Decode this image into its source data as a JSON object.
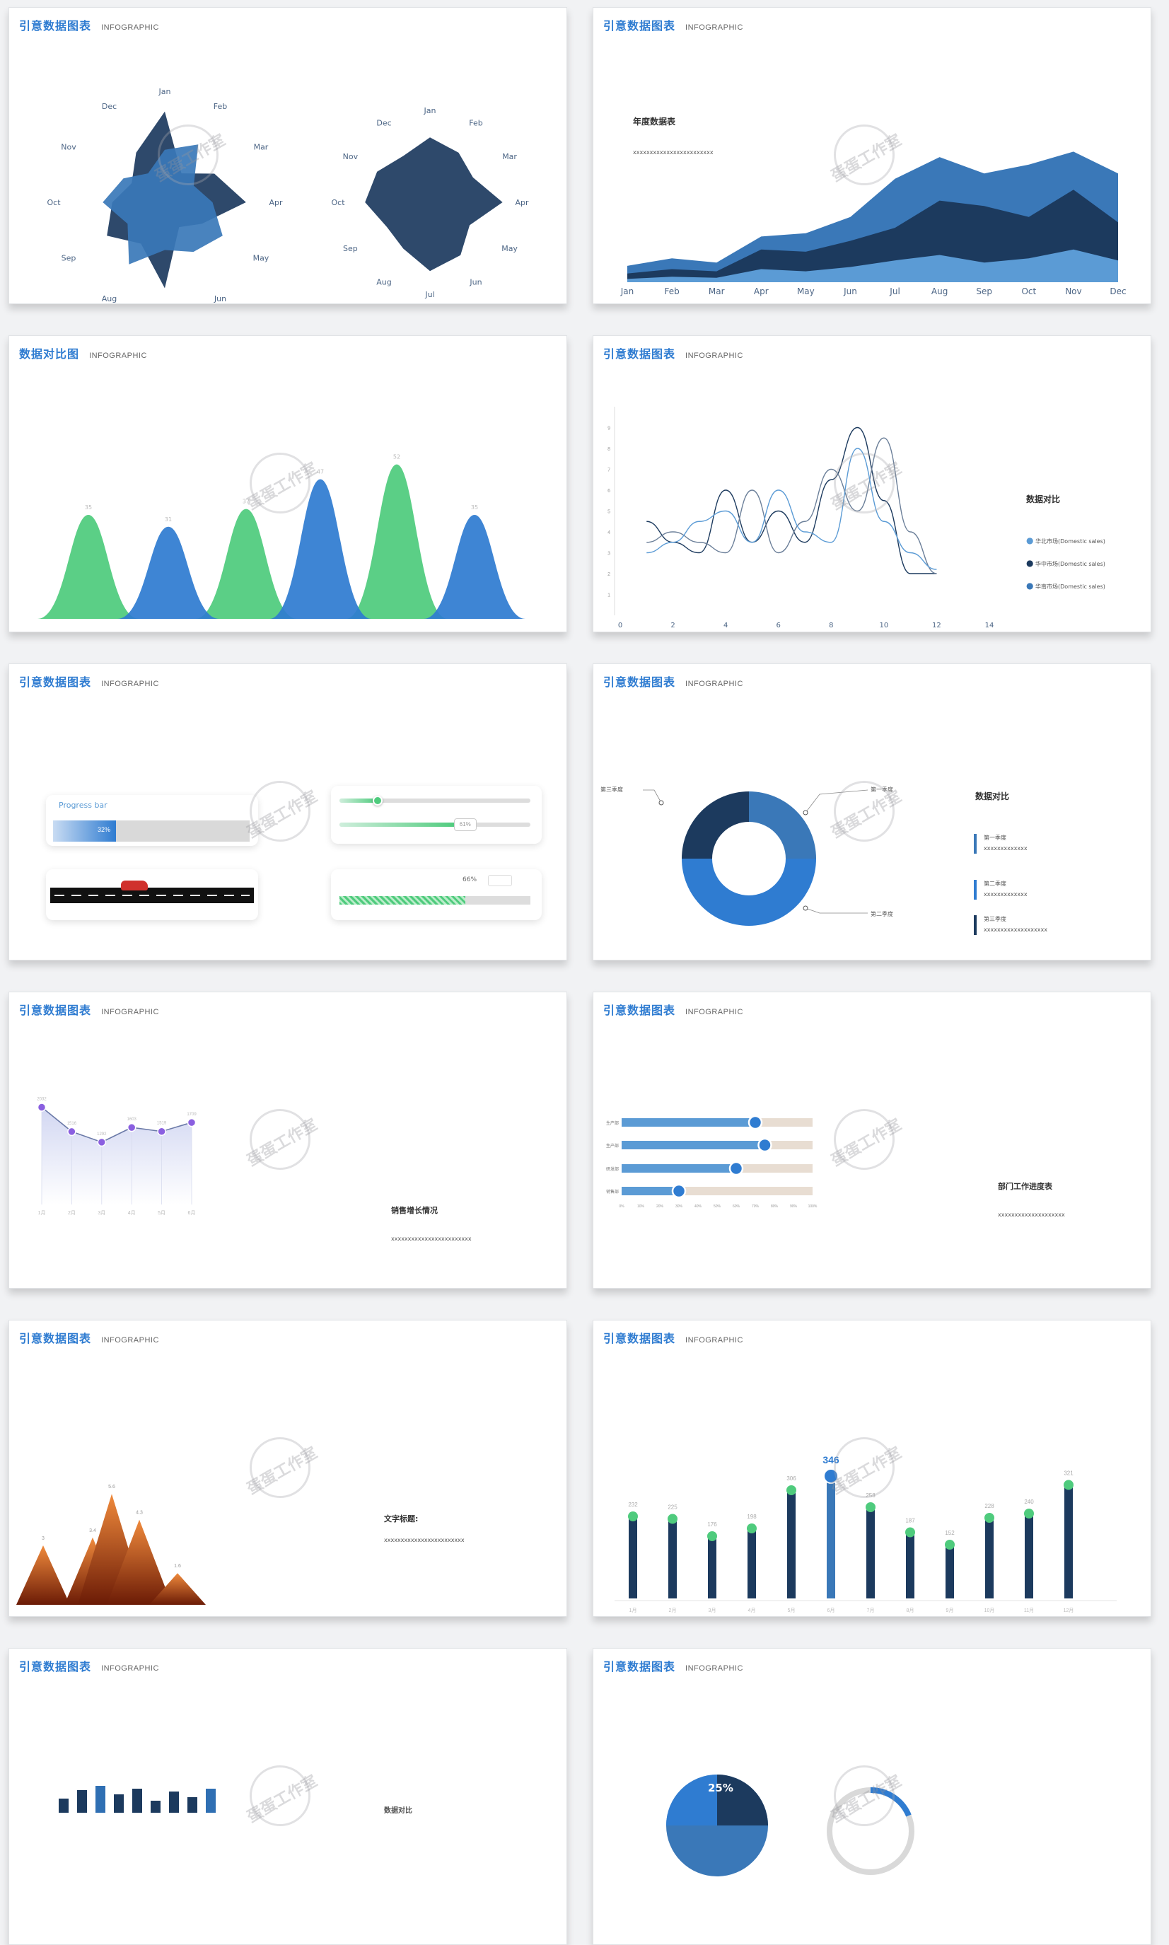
{
  "brand": {
    "title": "引意数据图表",
    "subtitle": "INFOGRAPHIC",
    "watermark": "蛋蛋工作室"
  },
  "colors": {
    "navy": "#1c3a5e",
    "blue": "#2f7cd1",
    "mid": "#3a78b8",
    "light": "#5b9bd5",
    "green": "#4fcb7d",
    "orange": "#e36b21",
    "beige": "#e8ddd2"
  },
  "slides": {
    "s1": {
      "header": "引意数据图表"
    },
    "s2": {
      "header": "引意数据图表",
      "panel_title": "年度数据表",
      "panel_text": "xxxxxxxxxxxxxxxxxxxxxxxx"
    },
    "s3": {
      "header": "数据对比图"
    },
    "s4": {
      "header": "引意数据图表",
      "legend_title": "数据对比",
      "legend": [
        "华北市场(Domestic sales)",
        "华中市场(Domestic sales)",
        "华南市场(Domestic sales)"
      ]
    },
    "s5": {
      "header": "引意数据图表",
      "progress_label": "Progress bar",
      "progress_value": "32%",
      "slider2_value": "61%",
      "striped_value": "66%"
    },
    "s6": {
      "header": "引意数据图表",
      "legend_title": "数据对比",
      "callout_left": "第三季度",
      "callout_top": "第一季度",
      "callout_bottom": "第二季度",
      "items": [
        {
          "label": "第一季度",
          "text": "xxxxxxxxxxxxx"
        },
        {
          "label": "第二季度",
          "text": "xxxxxxxxxxxxx"
        },
        {
          "label": "第三季度",
          "text": "xxxxxxxxxxxxxxxxxxx"
        }
      ]
    },
    "s7": {
      "header": "引意数据图表",
      "panel_title": "销售增长情况",
      "panel_text": "xxxxxxxxxxxxxxxxxxxxxxxx"
    },
    "s8": {
      "header": "引意数据图表",
      "panel_title": "部门工作进度表",
      "panel_text": "xxxxxxxxxxxxxxxxxxxx"
    },
    "s9": {
      "header": "引意数据图表",
      "panel_title": "文字标题:",
      "panel_text": "xxxxxxxxxxxxxxxxxxxxxxxx"
    },
    "s10": {
      "header": "引意数据图表"
    },
    "s11": {
      "header": "引意数据图表",
      "partial_label": "数据对比"
    },
    "s12": {
      "header": "引意数据图表",
      "pie_label": "25%"
    }
  },
  "chart_data": [
    {
      "type": "radar",
      "categories": [
        "Jan",
        "Feb",
        "Mar",
        "Apr",
        "May",
        "Jun",
        "Jul",
        "Aug",
        "Sep",
        "Oct",
        "Nov",
        "Dec"
      ],
      "series": [
        {
          "values": [
            0.95,
            0.35,
            0.6,
            0.85,
            0.45,
            0.3,
            0.9,
            0.5,
            0.7,
            0.55,
            0.4,
            0.6
          ]
        },
        {
          "values": [
            0.55,
            0.7,
            0.35,
            0.5,
            0.7,
            0.6,
            0.5,
            0.75,
            0.45,
            0.65,
            0.5,
            0.35
          ]
        }
      ]
    },
    {
      "type": "radar",
      "categories": [
        "Jan",
        "Feb",
        "Mar",
        "Apr",
        "May",
        "Jun",
        "Jul",
        "Aug",
        "Sep",
        "Oct",
        "Nov",
        "Dec"
      ],
      "series": [
        {
          "values": [
            0.85,
            0.75,
            0.65,
            0.95,
            0.6,
            0.8,
            0.9,
            0.7,
            0.65,
            0.85,
            0.8,
            0.7
          ]
        }
      ]
    },
    {
      "type": "area",
      "categories": [
        "Jan",
        "Feb",
        "Mar",
        "Apr",
        "May",
        "Jun",
        "Jul",
        "Aug",
        "Sep",
        "Oct",
        "Nov",
        "Dec"
      ],
      "series": [
        {
          "values": [
            15,
            22,
            18,
            42,
            45,
            60,
            95,
            115,
            100,
            108,
            120,
            100
          ]
        },
        {
          "values": [
            8,
            12,
            10,
            30,
            28,
            38,
            50,
            75,
            70,
            60,
            85,
            55
          ]
        },
        {
          "values": [
            3,
            5,
            4,
            12,
            10,
            14,
            20,
            25,
            18,
            22,
            30,
            20
          ]
        }
      ]
    },
    {
      "type": "area",
      "series": [
        {
          "values": [
            35,
            37,
            52,
            42,
            48,
            39
          ]
        },
        {
          "values": [
            31,
            47,
            35
          ]
        }
      ]
    },
    {
      "type": "line",
      "xlim": [
        0,
        14
      ],
      "x_ticks": [
        0,
        2,
        4,
        6,
        8,
        10,
        12,
        14
      ],
      "y_ticks": [
        1,
        2,
        3,
        4,
        5,
        6,
        7,
        8,
        9
      ],
      "series": [
        {
          "x": [
            1,
            2,
            3,
            4,
            5,
            6,
            7,
            8,
            9,
            10,
            11,
            12
          ],
          "y": [
            4.5,
            3.5,
            3,
            6,
            3.5,
            5,
            3.5,
            6.5,
            9,
            5.5,
            2,
            2
          ]
        },
        {
          "x": [
            1,
            2,
            3,
            4,
            5,
            6,
            7,
            8,
            9,
            10,
            11,
            12
          ],
          "y": [
            3.5,
            4,
            3.5,
            3,
            6,
            3,
            4.5,
            7,
            5,
            8.5,
            4,
            2
          ]
        },
        {
          "x": [
            1,
            2,
            3,
            4,
            5,
            6,
            7,
            8,
            9,
            10,
            11,
            12
          ],
          "y": [
            3,
            3.5,
            4.5,
            5,
            3.5,
            6,
            4,
            3.5,
            8,
            4.5,
            3,
            2.2
          ]
        }
      ]
    },
    {
      "type": "donut",
      "series": [
        {
          "name": "第一季度",
          "value": 25
        },
        {
          "name": "第二季度",
          "value": 50
        },
        {
          "name": "第三季度",
          "value": 25
        }
      ]
    },
    {
      "type": "line",
      "categories": [
        "1月",
        "2月",
        "3月",
        "4月",
        "5月",
        "6月"
      ],
      "values": [
        2032,
        1516,
        1292,
        1603,
        1519,
        1709
      ]
    },
    {
      "type": "bar",
      "orientation": "horizontal",
      "categories": [
        "生产部",
        "生产部",
        "研发部",
        "销售部"
      ],
      "values": [
        70,
        75,
        60,
        30
      ],
      "xlim": [
        0,
        100
      ],
      "x_ticks": [
        "0%",
        "10%",
        "20%",
        "30%",
        "40%",
        "50%",
        "60%",
        "70%",
        "80%",
        "90%",
        "100%"
      ]
    },
    {
      "type": "area",
      "values": [
        3,
        3.4,
        5.6,
        4.3,
        1.6
      ],
      "value_labels": [
        "3",
        "3.4",
        "5.6",
        "4.3",
        "1.6"
      ]
    },
    {
      "type": "bar",
      "categories": [
        "1月",
        "2月",
        "3月",
        "4月",
        "5月",
        "6月",
        "7月",
        "8月",
        "9月",
        "10月",
        "11月",
        "12月"
      ],
      "values": [
        232,
        225,
        176,
        198,
        306,
        346,
        258,
        187,
        152,
        228,
        240,
        321
      ],
      "highlight_index": 5
    }
  ]
}
